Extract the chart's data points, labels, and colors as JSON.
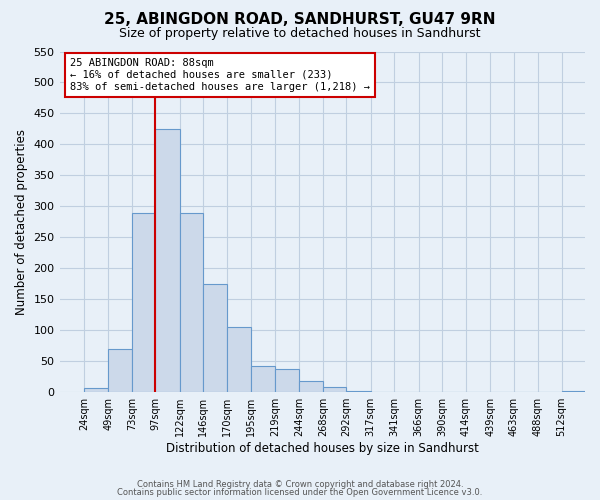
{
  "title": "25, ABINGDON ROAD, SANDHURST, GU47 9RN",
  "subtitle": "Size of property relative to detached houses in Sandhurst",
  "xlabel": "Distribution of detached houses by size in Sandhurst",
  "ylabel": "Number of detached properties",
  "bin_labels": [
    "24sqm",
    "49sqm",
    "73sqm",
    "97sqm",
    "122sqm",
    "146sqm",
    "170sqm",
    "195sqm",
    "219sqm",
    "244sqm",
    "268sqm",
    "292sqm",
    "317sqm",
    "341sqm",
    "366sqm",
    "390sqm",
    "414sqm",
    "439sqm",
    "463sqm",
    "488sqm",
    "512sqm"
  ],
  "bar_heights": [
    7,
    70,
    290,
    425,
    290,
    175,
    105,
    43,
    38,
    18,
    8,
    2,
    0,
    1,
    0,
    0,
    0,
    0,
    0,
    0,
    2
  ],
  "bar_color": "#ccd9ea",
  "bar_edge_color": "#6699cc",
  "vline_color": "#cc0000",
  "vline_x": 97,
  "annotation_title": "25 ABINGDON ROAD: 88sqm",
  "annotation_line1": "← 16% of detached houses are smaller (233)",
  "annotation_line2": "83% of semi-detached houses are larger (1,218) →",
  "annotation_box_color": "#ffffff",
  "annotation_box_edge_color": "#cc0000",
  "ylim": [
    0,
    550
  ],
  "yticks": [
    0,
    50,
    100,
    150,
    200,
    250,
    300,
    350,
    400,
    450,
    500,
    550
  ],
  "grid_color": "#c0cfe0",
  "background_color": "#e8f0f8",
  "footer_line1": "Contains HM Land Registry data © Crown copyright and database right 2024.",
  "footer_line2": "Contains public sector information licensed under the Open Government Licence v3.0."
}
